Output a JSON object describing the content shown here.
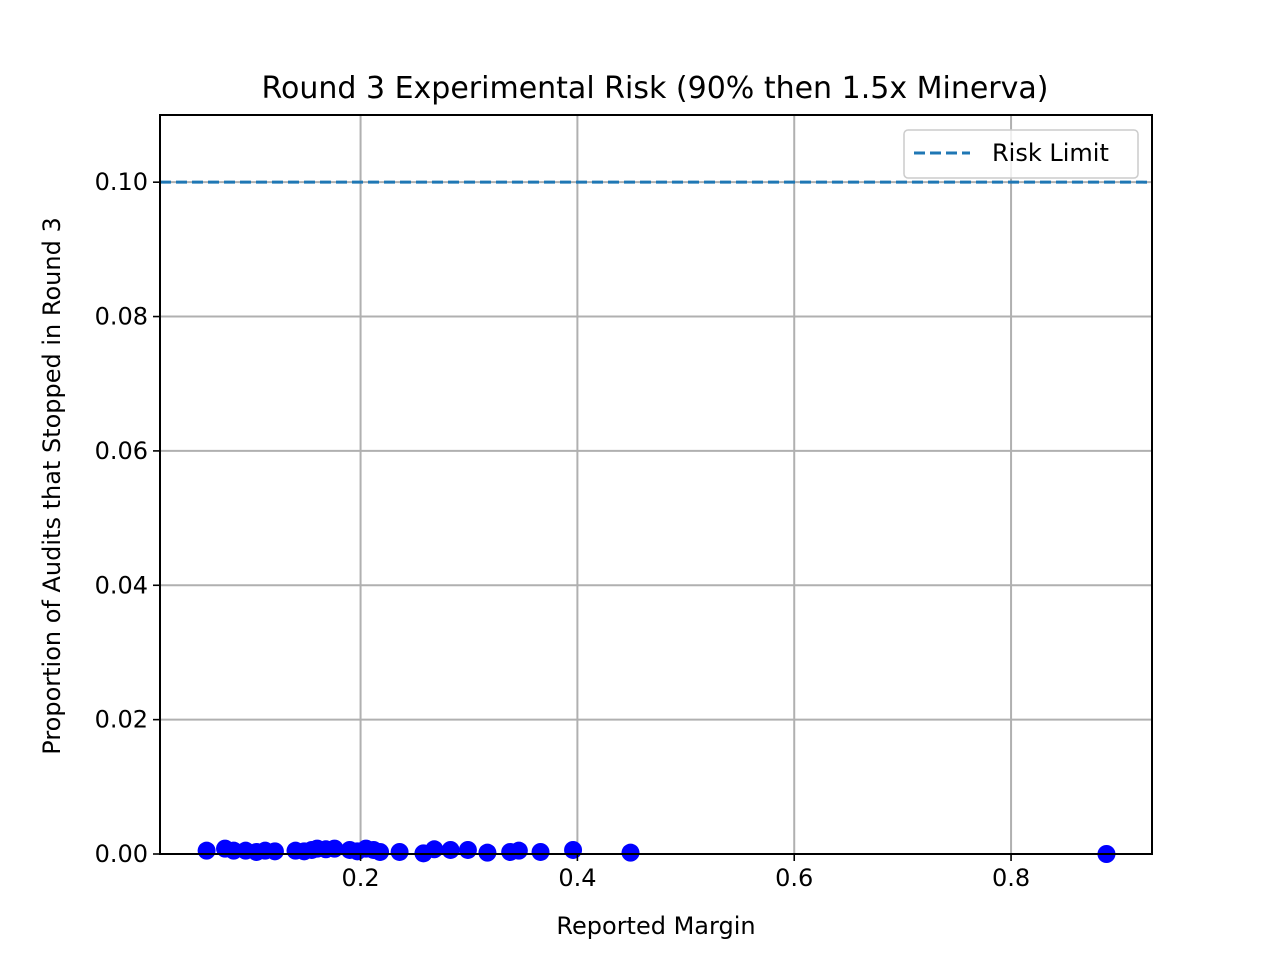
{
  "chart_data": {
    "type": "scatter",
    "title": "Round 3 Experimental Risk (90% then 1.5x Minerva)",
    "xlabel": "Reported Margin",
    "ylabel": "Proportion of Audits that Stopped in Round 3",
    "xlim": [
      0.015,
      0.93
    ],
    "ylim": [
      0.0,
      0.11
    ],
    "x_ticks": [
      0.2,
      0.4,
      0.6,
      0.8
    ],
    "x_tick_labels": [
      "0.2",
      "0.4",
      "0.6",
      "0.8"
    ],
    "y_ticks": [
      0.0,
      0.02,
      0.04,
      0.06,
      0.08,
      0.1
    ],
    "y_tick_labels": [
      "0.00",
      "0.02",
      "0.04",
      "0.06",
      "0.08",
      "0.10"
    ],
    "grid": true,
    "legend_position": "top-right",
    "series": [
      {
        "name": "",
        "color": "#0000ff",
        "marker": "circle",
        "points": [
          {
            "x": 0.058,
            "y": 0.0005
          },
          {
            "x": 0.075,
            "y": 0.0008
          },
          {
            "x": 0.083,
            "y": 0.0005
          },
          {
            "x": 0.094,
            "y": 0.0005
          },
          {
            "x": 0.104,
            "y": 0.0003
          },
          {
            "x": 0.112,
            "y": 0.0005
          },
          {
            "x": 0.121,
            "y": 0.0004
          },
          {
            "x": 0.14,
            "y": 0.0005
          },
          {
            "x": 0.148,
            "y": 0.0004
          },
          {
            "x": 0.155,
            "y": 0.0006
          },
          {
            "x": 0.16,
            "y": 0.0008
          },
          {
            "x": 0.168,
            "y": 0.0007
          },
          {
            "x": 0.176,
            "y": 0.0008
          },
          {
            "x": 0.19,
            "y": 0.0006
          },
          {
            "x": 0.197,
            "y": 0.0004
          },
          {
            "x": 0.205,
            "y": 0.0008
          },
          {
            "x": 0.212,
            "y": 0.0006
          },
          {
            "x": 0.218,
            "y": 0.0003
          },
          {
            "x": 0.236,
            "y": 0.0003
          },
          {
            "x": 0.258,
            "y": 0.0001
          },
          {
            "x": 0.268,
            "y": 0.0007
          },
          {
            "x": 0.283,
            "y": 0.0006
          },
          {
            "x": 0.299,
            "y": 0.0006
          },
          {
            "x": 0.317,
            "y": 0.0002
          },
          {
            "x": 0.338,
            "y": 0.0003
          },
          {
            "x": 0.346,
            "y": 0.0005
          },
          {
            "x": 0.366,
            "y": 0.0003
          },
          {
            "x": 0.396,
            "y": 0.0006
          },
          {
            "x": 0.449,
            "y": 0.0002
          },
          {
            "x": 0.888,
            "y": 0.0
          }
        ]
      }
    ],
    "reference_lines": [
      {
        "name": "Risk Limit",
        "orientation": "horizontal",
        "y": 0.1,
        "style": "dashed",
        "color": "#1f77b4"
      }
    ]
  }
}
